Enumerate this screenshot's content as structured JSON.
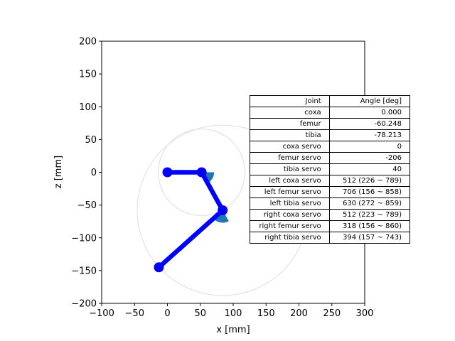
{
  "chart_data": {
    "type": "line",
    "xlabel": "x [mm]",
    "ylabel": "z [mm]",
    "xlim": [
      -100,
      300
    ],
    "ylim": [
      -200,
      200
    ],
    "x_ticks": [
      -100,
      -50,
      0,
      50,
      100,
      150,
      200,
      250,
      300
    ],
    "y_ticks": [
      -200,
      -150,
      -100,
      -50,
      0,
      50,
      100,
      150,
      200
    ],
    "x_tick_labels": [
      "−100",
      "−50",
      "0",
      "50",
      "100",
      "150",
      "200",
      "250",
      "300"
    ],
    "y_tick_labels": [
      "−200",
      "−150",
      "−100",
      "−50",
      "0",
      "50",
      "100",
      "150",
      "200"
    ],
    "leg": {
      "color": "#0000ff",
      "points": [
        {
          "x": 0,
          "z": 0
        },
        {
          "x": 52,
          "z": 0
        },
        {
          "x": 84,
          "z": -58
        },
        {
          "x": -13,
          "z": -145
        }
      ]
    },
    "reach_circles": [
      {
        "cx": 52,
        "cz": 0,
        "r": 66
      },
      {
        "cx": 84,
        "cz": -58,
        "r": 130
      }
    ],
    "joint_wedges": [
      {
        "cx": 52,
        "cz": 0,
        "r": 19,
        "start_deg": -60.248,
        "end_deg": 0
      },
      {
        "cx": 84,
        "cz": -58,
        "r": 19,
        "start_deg": -138.461,
        "end_deg": -60.248
      }
    ],
    "wedge_color": "#1f77b4",
    "circle_color": "#dddddd",
    "table": {
      "header": [
        "Joint",
        "Angle [deg]"
      ],
      "rows": [
        [
          "coxa",
          "0.000"
        ],
        [
          "femur",
          "-60.248"
        ],
        [
          "tibia",
          "-78.213"
        ],
        [
          "coxa servo",
          "0"
        ],
        [
          "femur servo",
          "-206"
        ],
        [
          "tibia servo",
          "40"
        ],
        [
          "left coxa servo",
          "512 (226 ~ 789)"
        ],
        [
          "left femur servo",
          "706 (156 ~ 858)"
        ],
        [
          "left tibia servo",
          "630 (272 ~ 859)"
        ],
        [
          "right coxa servo",
          "512 (223 ~ 789)"
        ],
        [
          "right femur servo",
          "318 (156 ~ 860)"
        ],
        [
          "right tibia servo",
          "394 (157 ~ 743)"
        ]
      ]
    }
  }
}
